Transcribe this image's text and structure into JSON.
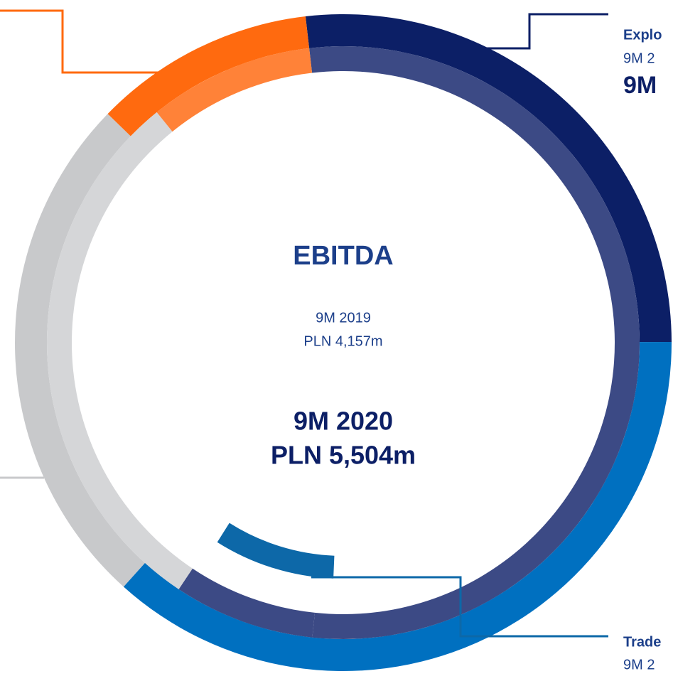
{
  "chart_data": {
    "type": "donut",
    "title": "EBITDA",
    "center_texts": [
      {
        "text": "9M 2019",
        "style": "small"
      },
      {
        "text": "PLN 4,157m",
        "style": "small"
      },
      {
        "text": "9M 2020",
        "style": "big"
      },
      {
        "text": "PLN 5,504m",
        "style": "big"
      }
    ],
    "series": [
      {
        "values": [
          26.8,
          36.7,
          25.6,
          10.9
        ],
        "colors": [
          "#0c1f66",
          "#0070c0",
          "#c8c9cb",
          "#ff6a0f"
        ]
      },
      {
        "values": [
          53.5,
          7.7,
          29.8,
          9.0
        ],
        "colors": [
          "#3c4a85",
          "#3c4a85",
          "#d5d6d8",
          "#ff8238"
        ]
      },
      {
        "values": [
          52.5,
          8.3
        ],
        "colors": [
          "none",
          "#0d68a8"
        ]
      }
    ],
    "annotations": [
      {
        "lines": [
          "Explo",
          "9M 2",
          "9M"
        ]
      },
      {
        "lines": [
          "Trade",
          "9M 2"
        ]
      }
    ]
  }
}
